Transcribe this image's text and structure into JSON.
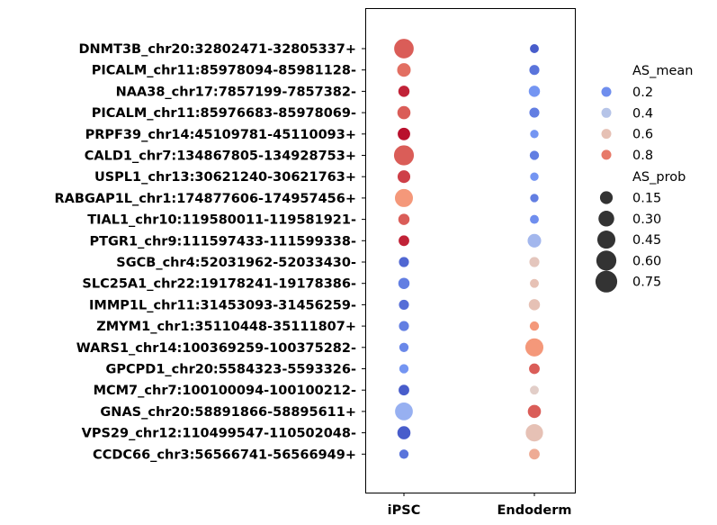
{
  "chart_data": {
    "type": "scatter",
    "categories_x": [
      "iPSC",
      "Endoderm"
    ],
    "categories_y": [
      "DNMT3B_chr20:32802471-32805337+",
      "PICALM_chr11:85978094-85981128-",
      "NAA38_chr17:7857199-7857382-",
      "PICALM_chr11:85976683-85978069-",
      "PRPF39_chr14:45109781-45110093+",
      "CALD1_chr7:134867805-134928753+",
      "USPL1_chr13:30621240-30621763+",
      "RABGAP1L_chr1:174877606-174957456+",
      "TIAL1_chr10:119580011-119581921-",
      "PTGR1_chr9:111597433-111599338-",
      "SGCB_chr4:52031962-52033430-",
      "SLC25A1_chr22:19178241-19178386-",
      "IMMP1L_chr11:31453093-31456259-",
      "ZMYM1_chr1:35110448-35111807+",
      "WARS1_chr14:100369259-100375282-",
      "GPCPD1_chr20:5584323-5593326-",
      "MCM7_chr7:100100094-100100212-",
      "GNAS_chr20:58891866-58895611+",
      "VPS29_chr12:110499547-110502048-",
      "CCDC66_chr3:56566741-56566949+"
    ],
    "color_metric": "AS_mean",
    "size_metric": "AS_prob",
    "points": [
      {
        "y": "DNMT3B_chr20:32802471-32805337+",
        "x": "iPSC",
        "AS_mean": 0.85,
        "AS_prob": 0.62
      },
      {
        "y": "DNMT3B_chr20:32802471-32805337+",
        "x": "Endoderm",
        "AS_mean": 0.05,
        "AS_prob": 0.05
      },
      {
        "y": "PICALM_chr11:85978094-85981128-",
        "x": "iPSC",
        "AS_mean": 0.82,
        "AS_prob": 0.22
      },
      {
        "y": "PICALM_chr11:85978094-85981128-",
        "x": "Endoderm",
        "AS_mean": 0.12,
        "AS_prob": 0.08
      },
      {
        "y": "NAA38_chr17:7857199-7857382-",
        "x": "iPSC",
        "AS_mean": 0.95,
        "AS_prob": 0.12
      },
      {
        "y": "NAA38_chr17:7857199-7857382-",
        "x": "Endoderm",
        "AS_mean": 0.22,
        "AS_prob": 0.12
      },
      {
        "y": "PICALM_chr11:85976683-85978069-",
        "x": "iPSC",
        "AS_mean": 0.85,
        "AS_prob": 0.2
      },
      {
        "y": "PICALM_chr11:85976683-85978069-",
        "x": "Endoderm",
        "AS_mean": 0.15,
        "AS_prob": 0.08
      },
      {
        "y": "PRPF39_chr14:45109781-45110093+",
        "x": "iPSC",
        "AS_mean": 0.98,
        "AS_prob": 0.17
      },
      {
        "y": "PRPF39_chr14:45109781-45110093+",
        "x": "Endoderm",
        "AS_mean": 0.22,
        "AS_prob": 0.04
      },
      {
        "y": "CALD1_chr7:134867805-134928753+",
        "x": "iPSC",
        "AS_mean": 0.85,
        "AS_prob": 0.65
      },
      {
        "y": "CALD1_chr7:134867805-134928753+",
        "x": "Endoderm",
        "AS_mean": 0.15,
        "AS_prob": 0.06
      },
      {
        "y": "USPL1_chr13:30621240-30621763+",
        "x": "iPSC",
        "AS_mean": 0.9,
        "AS_prob": 0.18
      },
      {
        "y": "USPL1_chr13:30621240-30621763+",
        "x": "Endoderm",
        "AS_mean": 0.22,
        "AS_prob": 0.04
      },
      {
        "y": "RABGAP1L_chr1:174877606-174957456+",
        "x": "iPSC",
        "AS_mean": 0.75,
        "AS_prob": 0.5
      },
      {
        "y": "RABGAP1L_chr1:174877606-174957456+",
        "x": "Endoderm",
        "AS_mean": 0.15,
        "AS_prob": 0.04
      },
      {
        "y": "TIAL1_chr10:119580011-119581921-",
        "x": "iPSC",
        "AS_mean": 0.85,
        "AS_prob": 0.12
      },
      {
        "y": "TIAL1_chr10:119580011-119581921-",
        "x": "Endoderm",
        "AS_mean": 0.2,
        "AS_prob": 0.05
      },
      {
        "y": "PTGR1_chr9:111597433-111599338-",
        "x": "iPSC",
        "AS_mean": 0.95,
        "AS_prob": 0.1
      },
      {
        "y": "PTGR1_chr9:111597433-111599338-",
        "x": "Endoderm",
        "AS_mean": 0.35,
        "AS_prob": 0.22
      },
      {
        "y": "SGCB_chr4:52031962-52033430-",
        "x": "iPSC",
        "AS_mean": 0.08,
        "AS_prob": 0.08
      },
      {
        "y": "SGCB_chr4:52031962-52033430-",
        "x": "Endoderm",
        "AS_mean": 0.58,
        "AS_prob": 0.08
      },
      {
        "y": "SLC25A1_chr22:19178241-19178386-",
        "x": "iPSC",
        "AS_mean": 0.15,
        "AS_prob": 0.12
      },
      {
        "y": "SLC25A1_chr22:19178241-19178386-",
        "x": "Endoderm",
        "AS_mean": 0.6,
        "AS_prob": 0.05
      },
      {
        "y": "IMMP1L_chr11:31453093-31456259-",
        "x": "iPSC",
        "AS_mean": 0.1,
        "AS_prob": 0.08
      },
      {
        "y": "IMMP1L_chr11:31453093-31456259-",
        "x": "Endoderm",
        "AS_mean": 0.6,
        "AS_prob": 0.12
      },
      {
        "y": "ZMYM1_chr1:35110448-35111807+",
        "x": "iPSC",
        "AS_mean": 0.15,
        "AS_prob": 0.08
      },
      {
        "y": "ZMYM1_chr1:35110448-35111807+",
        "x": "Endoderm",
        "AS_mean": 0.75,
        "AS_prob": 0.06
      },
      {
        "y": "WARS1_chr14:100369259-100375282-",
        "x": "iPSC",
        "AS_mean": 0.18,
        "AS_prob": 0.06
      },
      {
        "y": "WARS1_chr14:100369259-100375282-",
        "x": "Endoderm",
        "AS_mean": 0.75,
        "AS_prob": 0.5
      },
      {
        "y": "GPCPD1_chr20:5584323-5593326-",
        "x": "iPSC",
        "AS_mean": 0.22,
        "AS_prob": 0.06
      },
      {
        "y": "GPCPD1_chr20:5584323-5593326-",
        "x": "Endoderm",
        "AS_mean": 0.85,
        "AS_prob": 0.1
      },
      {
        "y": "MCM7_chr7:100100094-100100212-",
        "x": "iPSC",
        "AS_mean": 0.05,
        "AS_prob": 0.1
      },
      {
        "y": "MCM7_chr7:100100094-100100212-",
        "x": "Endoderm",
        "AS_mean": 0.55,
        "AS_prob": 0.05
      },
      {
        "y": "GNAS_chr20:58891866-58895611+",
        "x": "iPSC",
        "AS_mean": 0.32,
        "AS_prob": 0.48
      },
      {
        "y": "GNAS_chr20:58891866-58895611+",
        "x": "Endoderm",
        "AS_mean": 0.85,
        "AS_prob": 0.2
      },
      {
        "y": "VPS29_chr12:110499547-110502048-",
        "x": "iPSC",
        "AS_mean": 0.05,
        "AS_prob": 0.2
      },
      {
        "y": "VPS29_chr12:110499547-110502048-",
        "x": "Endoderm",
        "AS_mean": 0.6,
        "AS_prob": 0.45
      },
      {
        "y": "CCDC66_chr3:56566741-56566949+",
        "x": "iPSC",
        "AS_mean": 0.12,
        "AS_prob": 0.06
      },
      {
        "y": "CCDC66_chr3:56566741-56566949+",
        "x": "Endoderm",
        "AS_mean": 0.68,
        "AS_prob": 0.1
      }
    ],
    "legend": {
      "placement": "right",
      "color_title": "AS_mean",
      "color_entries": [
        {
          "label": "0.2",
          "value": 0.2
        },
        {
          "label": "0.4",
          "value": 0.4
        },
        {
          "label": "0.6",
          "value": 0.6
        },
        {
          "label": "0.8",
          "value": 0.8
        }
      ],
      "size_title": "AS_prob",
      "size_entries": [
        {
          "label": "0.15",
          "value": 0.15
        },
        {
          "label": "0.30",
          "value": 0.3
        },
        {
          "label": "0.45",
          "value": 0.45
        },
        {
          "label": "0.60",
          "value": 0.6
        },
        {
          "label": "0.75",
          "value": 0.75
        }
      ]
    },
    "colormap": "coolwarm",
    "grid": false,
    "colors": {
      "marker_outline": "#ffffff",
      "size_legend_marker": "#333333",
      "frame": "#000000"
    }
  }
}
